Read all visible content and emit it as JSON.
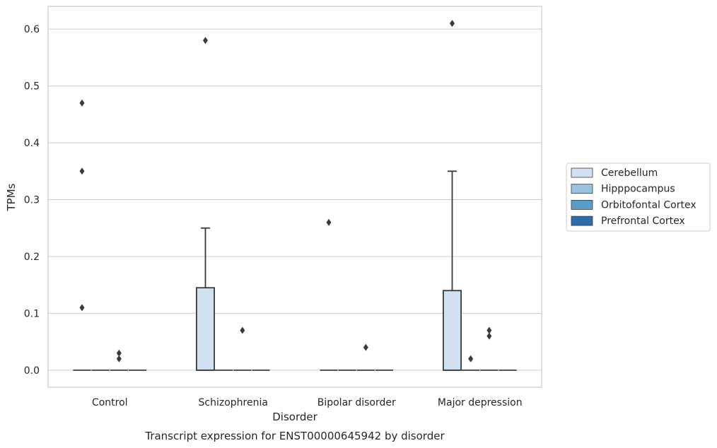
{
  "chart_data": {
    "type": "box",
    "title": "Transcript expression for ENST00000645942 by disorder",
    "xlabel": "Disorder",
    "ylabel": "TPMs",
    "ylim": [
      -0.03,
      0.64
    ],
    "yticks": [
      "0.0",
      "0.1",
      "0.2",
      "0.3",
      "0.4",
      "0.5",
      "0.6"
    ],
    "grid": true,
    "legend_position": "right",
    "categories": [
      "Control",
      "Schizophrenia",
      "Bipolar disorder",
      "Major depression"
    ],
    "series": [
      {
        "name": "Cerebellum",
        "color": "#d1e1f1",
        "boxes": [
          {
            "q1": 0,
            "median": 0,
            "q3": 0,
            "whisker_low": 0,
            "whisker_high": 0,
            "outliers": [
              0.11,
              0.35,
              0.47
            ]
          },
          {
            "q1": 0,
            "median": 0,
            "q3": 0.145,
            "whisker_low": 0,
            "whisker_high": 0.25,
            "outliers": [
              0.58
            ]
          },
          {
            "q1": 0,
            "median": 0,
            "q3": 0,
            "whisker_low": 0,
            "whisker_high": 0,
            "outliers": [
              0.26
            ]
          },
          {
            "q1": 0,
            "median": 0,
            "q3": 0.14,
            "whisker_low": 0,
            "whisker_high": 0.35,
            "outliers": [
              0.61
            ]
          }
        ]
      },
      {
        "name": "Hipppocampus",
        "color": "#9bc2de",
        "boxes": [
          {
            "q1": 0,
            "median": 0,
            "q3": 0,
            "whisker_low": 0,
            "whisker_high": 0,
            "outliers": []
          },
          {
            "q1": 0,
            "median": 0,
            "q3": 0,
            "whisker_low": 0,
            "whisker_high": 0,
            "outliers": []
          },
          {
            "q1": 0,
            "median": 0,
            "q3": 0,
            "whisker_low": 0,
            "whisker_high": 0,
            "outliers": []
          },
          {
            "q1": 0,
            "median": 0,
            "q3": 0,
            "whisker_low": 0,
            "whisker_high": 0,
            "outliers": [
              0.02
            ]
          }
        ]
      },
      {
        "name": "Orbitofontal Cortex",
        "color": "#5b9bc8",
        "boxes": [
          {
            "q1": 0,
            "median": 0,
            "q3": 0,
            "whisker_low": 0,
            "whisker_high": 0,
            "outliers": [
              0.02,
              0.03
            ]
          },
          {
            "q1": 0,
            "median": 0,
            "q3": 0,
            "whisker_low": 0,
            "whisker_high": 0,
            "outliers": [
              0.07
            ]
          },
          {
            "q1": 0,
            "median": 0,
            "q3": 0,
            "whisker_low": 0,
            "whisker_high": 0,
            "outliers": [
              0.04
            ]
          },
          {
            "q1": 0,
            "median": 0,
            "q3": 0,
            "whisker_low": 0,
            "whisker_high": 0,
            "outliers": [
              0.06,
              0.07
            ]
          }
        ]
      },
      {
        "name": "Prefrontal Cortex",
        "color": "#2e6ca9",
        "boxes": [
          {
            "q1": 0,
            "median": 0,
            "q3": 0,
            "whisker_low": 0,
            "whisker_high": 0,
            "outliers": []
          },
          {
            "q1": 0,
            "median": 0,
            "q3": 0,
            "whisker_low": 0,
            "whisker_high": 0,
            "outliers": []
          },
          {
            "q1": 0,
            "median": 0,
            "q3": 0,
            "whisker_low": 0,
            "whisker_high": 0,
            "outliers": []
          },
          {
            "q1": 0,
            "median": 0,
            "q3": 0,
            "whisker_low": 0,
            "whisker_high": 0,
            "outliers": []
          }
        ]
      }
    ]
  }
}
